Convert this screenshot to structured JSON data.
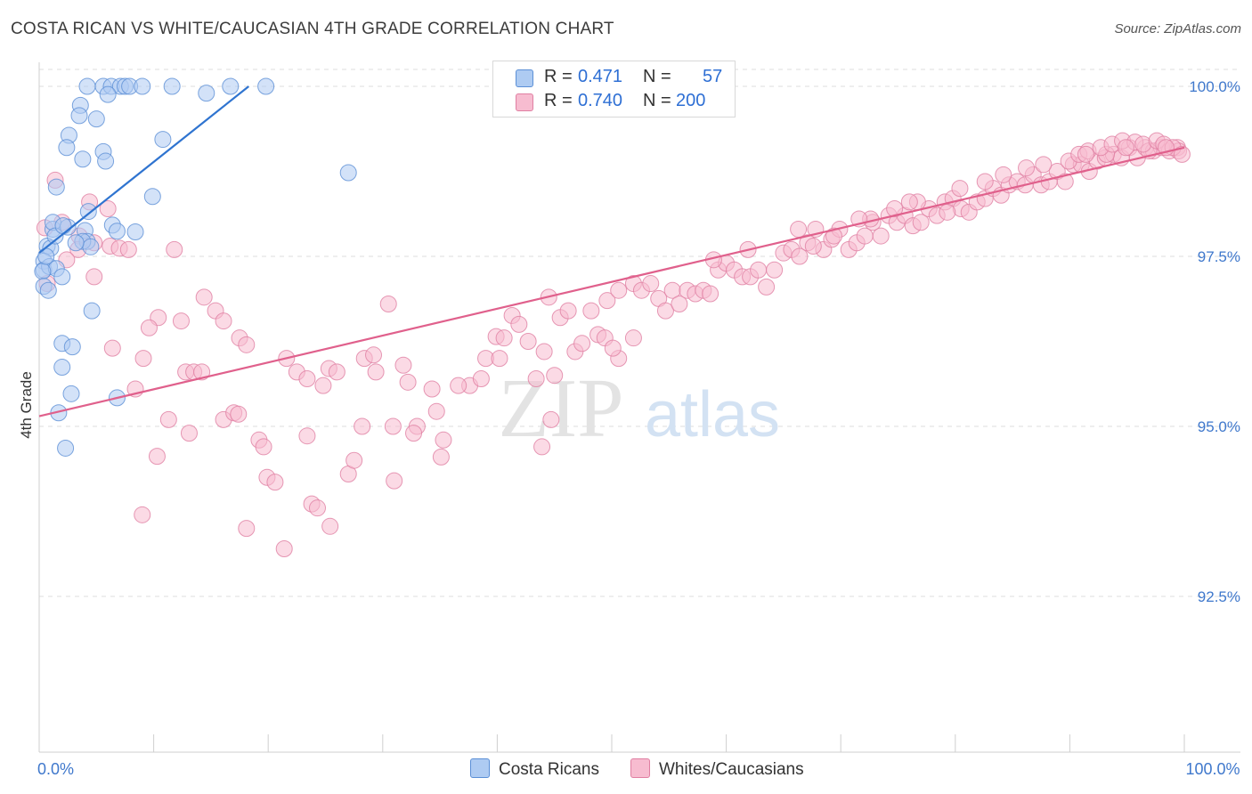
{
  "title": "COSTA RICAN VS WHITE/CAUCASIAN 4TH GRADE CORRELATION CHART",
  "source": "Source: ZipAtlas.com",
  "watermark": {
    "zip": "ZIP",
    "atlas": "atlas"
  },
  "legend": {
    "r_label": "R =",
    "n_label": "N =",
    "rows": [
      {
        "name": "Costa Ricans",
        "r": "0.471",
        "n": "57",
        "fill": "#aecbf2",
        "stroke": "#5b8fd6"
      },
      {
        "name": "Whites/Caucasians",
        "r": "0.740",
        "n": "200",
        "fill": "#f7bcd0",
        "stroke": "#e07fa2"
      }
    ]
  },
  "chart_data": {
    "type": "scatter",
    "title": "COSTA RICAN VS WHITE/CAUCASIAN 4TH GRADE CORRELATION CHART",
    "xlabel": "",
    "ylabel": "4th Grade",
    "xlim": [
      0,
      100
    ],
    "ylim": [
      90.0,
      100.2
    ],
    "x_tick_labels": [
      {
        "value": 0,
        "label": "0.0%"
      },
      {
        "value": 100,
        "label": "100.0%"
      }
    ],
    "y_tick_labels": [
      {
        "value": 100.0,
        "label": "100.0%"
      },
      {
        "value": 97.5,
        "label": "97.5%"
      },
      {
        "value": 95.0,
        "label": "95.0%"
      },
      {
        "value": 92.5,
        "label": "92.5%"
      }
    ],
    "x_minor_ticks": [
      10,
      20,
      30,
      40,
      50,
      60,
      70,
      80,
      90,
      100
    ],
    "series": [
      {
        "name": "Costa Ricans",
        "color_fill": "#aecbf2",
        "color_stroke": "#5b8fd6",
        "trend_color": "#2f74d0",
        "trend": {
          "x0": 0.0,
          "y0": 97.55,
          "x1": 18.3,
          "y1": 100.0
        },
        "points": [
          [
            4.2,
            100.0
          ],
          [
            5.6,
            100.0
          ],
          [
            6.3,
            100.0
          ],
          [
            7.1,
            100.0
          ],
          [
            7.5,
            100.0
          ],
          [
            7.9,
            100.0
          ],
          [
            9.0,
            100.0
          ],
          [
            11.6,
            100.0
          ],
          [
            16.7,
            100.0
          ],
          [
            19.8,
            100.0
          ],
          [
            6.0,
            99.88
          ],
          [
            14.6,
            99.9
          ],
          [
            3.6,
            99.72
          ],
          [
            3.5,
            99.57
          ],
          [
            5.0,
            99.52
          ],
          [
            2.6,
            99.28
          ],
          [
            2.4,
            99.1
          ],
          [
            5.6,
            99.04
          ],
          [
            3.8,
            98.93
          ],
          [
            5.8,
            98.9
          ],
          [
            10.8,
            99.22
          ],
          [
            1.5,
            98.52
          ],
          [
            9.9,
            98.38
          ],
          [
            27.0,
            98.73
          ],
          [
            4.3,
            98.16
          ],
          [
            1.2,
            97.9
          ],
          [
            2.5,
            97.93
          ],
          [
            6.4,
            97.96
          ],
          [
            6.8,
            97.87
          ],
          [
            8.4,
            97.86
          ],
          [
            4.0,
            97.88
          ],
          [
            4.2,
            97.72
          ],
          [
            0.7,
            97.65
          ],
          [
            1.0,
            97.62
          ],
          [
            3.8,
            97.72
          ],
          [
            4.5,
            97.64
          ],
          [
            0.4,
            97.43
          ],
          [
            0.4,
            97.3
          ],
          [
            0.9,
            97.35
          ],
          [
            1.5,
            97.32
          ],
          [
            0.3,
            97.28
          ],
          [
            2.0,
            97.2
          ],
          [
            0.4,
            97.06
          ],
          [
            0.8,
            97.0
          ],
          [
            4.6,
            96.7
          ],
          [
            2.0,
            96.22
          ],
          [
            2.9,
            96.17
          ],
          [
            2.0,
            95.87
          ],
          [
            2.8,
            95.48
          ],
          [
            6.8,
            95.42
          ],
          [
            1.7,
            95.2
          ],
          [
            2.3,
            94.68
          ],
          [
            1.2,
            98.0
          ],
          [
            0.6,
            97.5
          ],
          [
            1.4,
            97.8
          ],
          [
            3.2,
            97.7
          ],
          [
            2.1,
            97.95
          ]
        ]
      },
      {
        "name": "Whites/Caucasians",
        "color_fill": "#f7bcd0",
        "color_stroke": "#e07fa2",
        "trend_color": "#e0608c",
        "trend": {
          "x0": 0.0,
          "y0": 95.15,
          "x1": 100.0,
          "y1": 99.1
        },
        "points": [
          [
            1.4,
            98.62
          ],
          [
            4.4,
            98.3
          ],
          [
            6.0,
            98.2
          ],
          [
            2.0,
            98.0
          ],
          [
            0.5,
            97.92
          ],
          [
            3.5,
            97.8
          ],
          [
            4.8,
            97.7
          ],
          [
            3.4,
            97.6
          ],
          [
            6.2,
            97.65
          ],
          [
            7.0,
            97.62
          ],
          [
            7.8,
            97.6
          ],
          [
            11.8,
            97.6
          ],
          [
            2.4,
            97.45
          ],
          [
            4.8,
            97.2
          ],
          [
            0.7,
            97.1
          ],
          [
            14.4,
            96.9
          ],
          [
            15.4,
            96.7
          ],
          [
            10.4,
            96.6
          ],
          [
            12.4,
            96.55
          ],
          [
            16.1,
            96.55
          ],
          [
            9.6,
            96.45
          ],
          [
            17.5,
            96.3
          ],
          [
            6.4,
            96.15
          ],
          [
            18.1,
            96.2
          ],
          [
            9.1,
            96.0
          ],
          [
            21.6,
            96.0
          ],
          [
            12.8,
            95.8
          ],
          [
            13.5,
            95.8
          ],
          [
            14.2,
            95.8
          ],
          [
            22.5,
            95.8
          ],
          [
            8.4,
            95.55
          ],
          [
            23.4,
            95.7
          ],
          [
            25.3,
            95.85
          ],
          [
            24.8,
            95.6
          ],
          [
            26.0,
            95.8
          ],
          [
            28.4,
            96.0
          ],
          [
            29.4,
            95.8
          ],
          [
            29.2,
            96.05
          ],
          [
            31.8,
            95.9
          ],
          [
            30.5,
            96.8
          ],
          [
            11.3,
            95.1
          ],
          [
            13.1,
            94.9
          ],
          [
            16.1,
            95.1
          ],
          [
            17.0,
            95.2
          ],
          [
            17.4,
            95.18
          ],
          [
            19.2,
            94.8
          ],
          [
            19.6,
            94.7
          ],
          [
            23.4,
            94.86
          ],
          [
            28.2,
            95.0
          ],
          [
            30.9,
            95.0
          ],
          [
            32.2,
            95.65
          ],
          [
            33.0,
            95.0
          ],
          [
            34.3,
            95.55
          ],
          [
            32.7,
            94.9
          ],
          [
            34.7,
            95.22
          ],
          [
            35.3,
            94.8
          ],
          [
            35.1,
            94.55
          ],
          [
            37.6,
            95.6
          ],
          [
            36.6,
            95.6
          ],
          [
            38.6,
            95.7
          ],
          [
            10.3,
            94.56
          ],
          [
            18.1,
            93.5
          ],
          [
            19.9,
            94.25
          ],
          [
            20.6,
            94.18
          ],
          [
            21.4,
            93.2
          ],
          [
            23.8,
            93.86
          ],
          [
            24.3,
            93.8
          ],
          [
            25.4,
            93.53
          ],
          [
            27.0,
            94.3
          ],
          [
            27.5,
            94.5
          ],
          [
            31.0,
            94.2
          ],
          [
            9.0,
            93.7
          ],
          [
            39.0,
            96.0
          ],
          [
            39.9,
            96.32
          ],
          [
            40.6,
            96.3
          ],
          [
            41.3,
            96.63
          ],
          [
            42.7,
            96.25
          ],
          [
            40.2,
            96.0
          ],
          [
            41.9,
            96.5
          ],
          [
            43.4,
            95.7
          ],
          [
            44.1,
            96.1
          ],
          [
            44.5,
            96.9
          ],
          [
            45.5,
            96.6
          ],
          [
            46.2,
            96.7
          ],
          [
            46.8,
            96.1
          ],
          [
            47.4,
            96.22
          ],
          [
            48.2,
            96.7
          ],
          [
            48.8,
            96.35
          ],
          [
            49.4,
            96.3
          ],
          [
            50.6,
            96.0
          ],
          [
            50.1,
            96.15
          ],
          [
            51.9,
            96.3
          ],
          [
            45.0,
            95.75
          ],
          [
            43.9,
            94.7
          ],
          [
            44.7,
            95.1
          ],
          [
            49.6,
            96.85
          ],
          [
            50.6,
            97.0
          ],
          [
            51.9,
            97.1
          ],
          [
            52.6,
            97.0
          ],
          [
            53.4,
            97.1
          ],
          [
            54.1,
            96.88
          ],
          [
            54.7,
            96.7
          ],
          [
            55.3,
            97.0
          ],
          [
            55.9,
            96.8
          ],
          [
            56.6,
            97.0
          ],
          [
            57.3,
            96.95
          ],
          [
            58.0,
            97.0
          ],
          [
            58.6,
            96.95
          ],
          [
            59.3,
            97.3
          ],
          [
            60.0,
            97.4
          ],
          [
            60.7,
            97.3
          ],
          [
            61.4,
            97.2
          ],
          [
            62.1,
            97.2
          ],
          [
            62.8,
            97.3
          ],
          [
            63.5,
            97.05
          ],
          [
            64.2,
            97.3
          ],
          [
            65.0,
            97.55
          ],
          [
            65.7,
            97.6
          ],
          [
            66.4,
            97.5
          ],
          [
            67.1,
            97.7
          ],
          [
            67.8,
            97.9
          ],
          [
            68.5,
            97.6
          ],
          [
            69.2,
            97.75
          ],
          [
            69.9,
            97.9
          ],
          [
            70.7,
            97.6
          ],
          [
            71.4,
            97.7
          ],
          [
            72.1,
            97.8
          ],
          [
            72.8,
            98.0
          ],
          [
            73.5,
            97.8
          ],
          [
            74.2,
            98.1
          ],
          [
            74.9,
            98.0
          ],
          [
            75.6,
            98.1
          ],
          [
            76.3,
            97.95
          ],
          [
            77.0,
            98.0
          ],
          [
            77.7,
            98.2
          ],
          [
            78.4,
            98.1
          ],
          [
            79.1,
            98.3
          ],
          [
            79.8,
            98.35
          ],
          [
            80.5,
            98.2
          ],
          [
            81.2,
            98.15
          ],
          [
            81.9,
            98.3
          ],
          [
            82.6,
            98.35
          ],
          [
            83.3,
            98.5
          ],
          [
            84.0,
            98.4
          ],
          [
            84.7,
            98.55
          ],
          [
            85.4,
            98.6
          ],
          [
            86.1,
            98.55
          ],
          [
            86.8,
            98.7
          ],
          [
            87.5,
            98.55
          ],
          [
            88.2,
            98.6
          ],
          [
            88.9,
            98.75
          ],
          [
            89.6,
            98.6
          ],
          [
            90.3,
            98.85
          ],
          [
            91.0,
            98.85
          ],
          [
            91.7,
            98.75
          ],
          [
            92.4,
            98.9
          ],
          [
            93.1,
            98.95
          ],
          [
            93.8,
            99.0
          ],
          [
            94.5,
            98.95
          ],
          [
            95.2,
            99.1
          ],
          [
            95.9,
            98.95
          ],
          [
            96.6,
            99.1
          ],
          [
            97.3,
            99.05
          ],
          [
            98.0,
            99.1
          ],
          [
            98.7,
            99.05
          ],
          [
            99.4,
            99.1
          ],
          [
            99.5,
            99.05
          ],
          [
            58.9,
            97.45
          ],
          [
            61.9,
            97.6
          ],
          [
            66.3,
            97.9
          ],
          [
            69.4,
            97.8
          ],
          [
            72.6,
            98.05
          ],
          [
            74.7,
            98.2
          ],
          [
            76.7,
            98.3
          ],
          [
            79.3,
            98.15
          ],
          [
            82.6,
            98.6
          ],
          [
            86.2,
            98.8
          ],
          [
            89.9,
            98.9
          ],
          [
            93.2,
            99.0
          ],
          [
            96.9,
            99.05
          ],
          [
            90.8,
            99.0
          ],
          [
            91.6,
            99.05
          ],
          [
            92.7,
            99.1
          ],
          [
            93.7,
            99.15
          ],
          [
            94.6,
            99.2
          ],
          [
            95.7,
            99.18
          ],
          [
            96.4,
            99.15
          ],
          [
            97.6,
            99.2
          ],
          [
            98.2,
            99.15
          ],
          [
            99.0,
            99.1
          ],
          [
            67.6,
            97.65
          ],
          [
            71.6,
            98.05
          ],
          [
            76.0,
            98.3
          ],
          [
            80.4,
            98.5
          ],
          [
            84.2,
            98.7
          ],
          [
            87.7,
            98.85
          ],
          [
            91.4,
            99.0
          ],
          [
            94.9,
            99.1
          ],
          [
            98.4,
            99.1
          ],
          [
            99.8,
            99.0
          ]
        ]
      }
    ]
  }
}
